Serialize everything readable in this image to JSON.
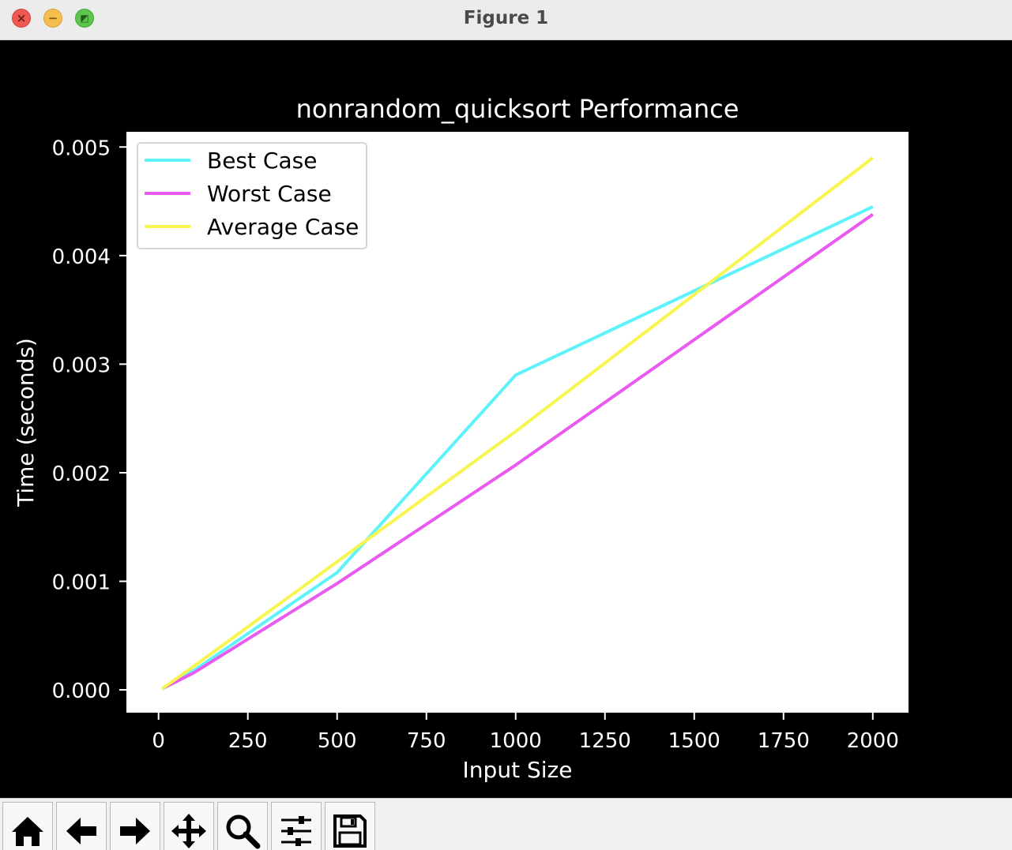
{
  "window": {
    "title": "Figure 1"
  },
  "toolbar": {
    "buttons": [
      {
        "name": "home-button",
        "icon": "home-icon"
      },
      {
        "name": "back-button",
        "icon": "arrow-left-icon"
      },
      {
        "name": "forward-button",
        "icon": "arrow-right-icon"
      },
      {
        "name": "pan-button",
        "icon": "move-icon"
      },
      {
        "name": "zoom-button",
        "icon": "magnifier-icon"
      },
      {
        "name": "configure-subplots-button",
        "icon": "sliders-icon"
      },
      {
        "name": "save-button",
        "icon": "floppy-disk-icon"
      }
    ]
  },
  "chart_data": {
    "type": "line",
    "title": "nonrandom_quicksort Performance",
    "xlabel": "Input Size",
    "ylabel": "Time (seconds)",
    "xlim": [
      -90,
      2100
    ],
    "ylim": [
      -0.00021,
      0.00514
    ],
    "xticks": [
      0,
      250,
      500,
      750,
      1000,
      1250,
      1500,
      1750,
      2000
    ],
    "xtick_labels": [
      "0",
      "250",
      "500",
      "750",
      "1000",
      "1250",
      "1500",
      "1750",
      "2000"
    ],
    "yticks": [
      0.0,
      0.001,
      0.002,
      0.003,
      0.004,
      0.005
    ],
    "ytick_labels": [
      "0.000",
      "0.001",
      "0.002",
      "0.003",
      "0.004",
      "0.005"
    ],
    "x": [
      10,
      100,
      500,
      1000,
      2000
    ],
    "series": [
      {
        "name": "Best Case",
        "color": "#5ef2fa",
        "values": [
          1e-05,
          0.00018,
          0.00108,
          0.0029,
          0.00445
        ]
      },
      {
        "name": "Worst Case",
        "color": "#e85af0",
        "values": [
          1e-05,
          0.00016,
          0.00098,
          0.00207,
          0.00438
        ]
      },
      {
        "name": "Average Case",
        "color": "#f8f54e",
        "values": [
          1e-05,
          0.00022,
          0.00118,
          0.00238,
          0.0049
        ]
      }
    ],
    "legend": "upper-left",
    "grid": false
  }
}
